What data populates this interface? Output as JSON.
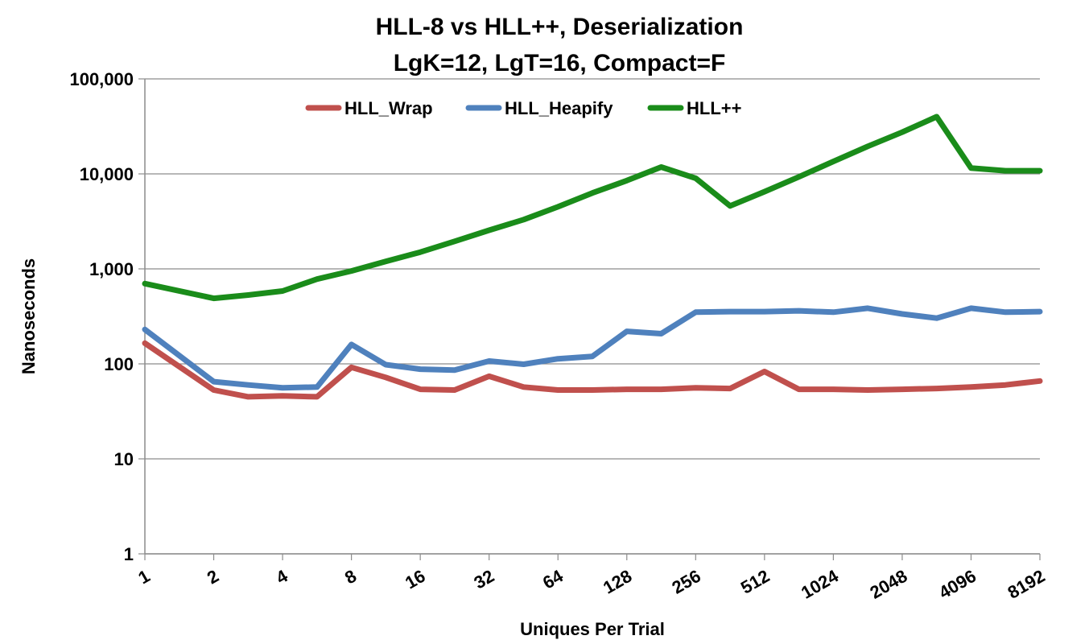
{
  "chart_data": {
    "type": "line",
    "title": "HLL-8 vs HLL++, Deserialization",
    "subtitle": "LgK=12, LgT=16, Compact=F",
    "xlabel": "Uniques Per Trial",
    "ylabel": "Nanoseconds",
    "y_scale": "log",
    "ylim": [
      1,
      100000
    ],
    "y_ticks": [
      "1",
      "10",
      "100",
      "1,000",
      "10,000",
      "100,000"
    ],
    "x_scale": "log2",
    "xlim": [
      1,
      8192
    ],
    "x_ticks": [
      "1",
      "2",
      "4",
      "8",
      "16",
      "32",
      "64",
      "128",
      "256",
      "512",
      "1024",
      "2048",
      "4096",
      "8192"
    ],
    "grid": "horizontal",
    "legend_position": "top",
    "x": [
      1,
      2,
      2.83,
      4,
      5.66,
      8,
      11.3,
      16,
      22.6,
      32,
      45.3,
      64,
      90.5,
      128,
      181,
      256,
      362,
      512,
      724,
      1024,
      1448,
      2048,
      2896,
      4096,
      5793,
      8192
    ],
    "series": [
      {
        "name": "HLL_Wrap",
        "color": "#c0504d",
        "values": [
          165,
          53,
          45,
          46,
          45,
          92,
          72,
          54,
          53,
          74,
          57,
          53,
          53,
          54,
          54,
          56,
          55,
          83,
          54,
          54,
          53,
          54,
          55,
          57,
          60,
          66
        ]
      },
      {
        "name": "HLL_Heapify",
        "color": "#4f81bd",
        "values": [
          230,
          65,
          60,
          56,
          57,
          160,
          98,
          88,
          86,
          107,
          99,
          113,
          120,
          220,
          208,
          350,
          355,
          355,
          362,
          350,
          385,
          335,
          303,
          385,
          350,
          355
        ]
      },
      {
        "name": "HLL++",
        "color": "#1a8c1a",
        "values": [
          700,
          490,
          530,
          585,
          780,
          950,
          1200,
          1500,
          1950,
          2550,
          3300,
          4500,
          6300,
          8500,
          11800,
          9000,
          4600,
          6500,
          9300,
          13500,
          19500,
          27500,
          40000,
          11500,
          10800,
          10800
        ]
      }
    ]
  }
}
